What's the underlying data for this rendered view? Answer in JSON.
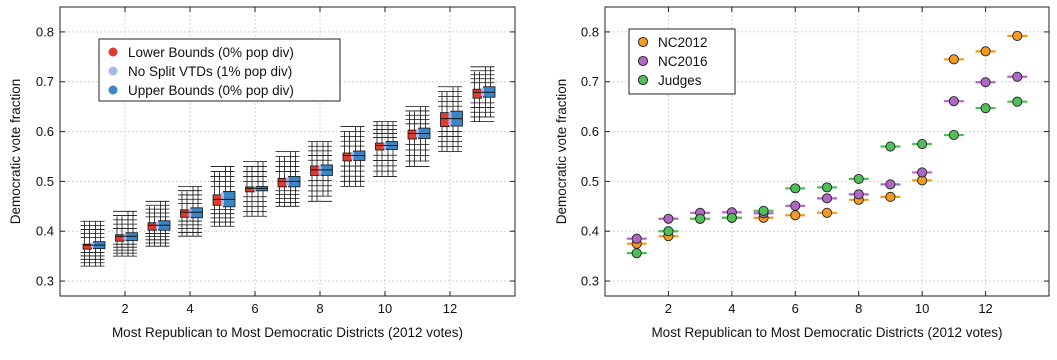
{
  "chart_data": [
    {
      "type": "box",
      "xlabel": "Most Republican to Most Democratic Districts (2012 votes)",
      "ylabel": "Democratic vote fraction",
      "xlim": [
        0,
        14
      ],
      "ylim": [
        0.27,
        0.85
      ],
      "xticks": [
        2,
        4,
        6,
        8,
        10,
        12
      ],
      "yticks": [
        0.3,
        0.4,
        0.5,
        0.6,
        0.7,
        0.8
      ],
      "x_tick_labels": [
        "2",
        "4",
        "6",
        "8",
        "10",
        "12"
      ],
      "y_tick_labels": [
        "0.3",
        "0.4",
        "0.5",
        "0.6",
        "0.7",
        "0.8"
      ],
      "grid": true,
      "legend_position": "top-left",
      "categories": [
        1,
        2,
        3,
        4,
        5,
        6,
        7,
        8,
        9,
        10,
        11,
        12,
        13
      ],
      "series": [
        {
          "name": "Lower Bounds (0% pop div)",
          "color": "#e03a2f",
          "median": [
            0.369,
            0.386,
            0.409,
            0.435,
            0.461,
            0.484,
            0.497,
            0.52,
            0.548,
            0.57,
            0.593,
            0.621,
            0.676
          ],
          "q1": [
            0.364,
            0.38,
            0.402,
            0.428,
            0.452,
            0.479,
            0.489,
            0.512,
            0.541,
            0.563,
            0.585,
            0.61,
            0.667
          ],
          "q3": [
            0.374,
            0.393,
            0.417,
            0.443,
            0.473,
            0.489,
            0.506,
            0.531,
            0.557,
            0.577,
            0.603,
            0.638,
            0.685
          ],
          "whisker_low": [
            0.33,
            0.35,
            0.37,
            0.39,
            0.41,
            0.43,
            0.45,
            0.46,
            0.49,
            0.51,
            0.53,
            0.56,
            0.62
          ],
          "whisker_high": [
            0.42,
            0.43,
            0.45,
            0.48,
            0.52,
            0.53,
            0.55,
            0.58,
            0.6,
            0.62,
            0.64,
            0.68,
            0.72
          ]
        },
        {
          "name": "No Split VTDs (1% pop div)",
          "color": "#a9b8e8",
          "median": [
            0.371,
            0.389,
            0.411,
            0.437,
            0.463,
            0.485,
            0.499,
            0.522,
            0.55,
            0.571,
            0.595,
            0.624,
            0.678
          ]
        },
        {
          "name": "Upper Bounds (0% pop div)",
          "color": "#3b86c6",
          "median": [
            0.372,
            0.39,
            0.412,
            0.438,
            0.464,
            0.486,
            0.5,
            0.523,
            0.552,
            0.572,
            0.596,
            0.626,
            0.679
          ],
          "q1": [
            0.365,
            0.381,
            0.402,
            0.427,
            0.449,
            0.481,
            0.489,
            0.512,
            0.542,
            0.564,
            0.586,
            0.611,
            0.669
          ],
          "q3": [
            0.379,
            0.397,
            0.421,
            0.447,
            0.48,
            0.49,
            0.51,
            0.533,
            0.561,
            0.58,
            0.607,
            0.641,
            0.69
          ],
          "whisker_low": [
            0.33,
            0.35,
            0.37,
            0.39,
            0.41,
            0.43,
            0.45,
            0.47,
            0.49,
            0.51,
            0.54,
            0.56,
            0.63
          ],
          "whisker_high": [
            0.42,
            0.44,
            0.46,
            0.49,
            0.53,
            0.54,
            0.56,
            0.58,
            0.61,
            0.62,
            0.65,
            0.69,
            0.73
          ]
        }
      ]
    },
    {
      "type": "scatter",
      "xlabel": "Most Republican to Most Democratic Districts (2012 votes)",
      "ylabel": "Democratic vote fraction",
      "xlim": [
        0,
        14
      ],
      "ylim": [
        0.27,
        0.85
      ],
      "xticks": [
        2,
        4,
        6,
        8,
        10,
        12
      ],
      "yticks": [
        0.3,
        0.4,
        0.5,
        0.6,
        0.7,
        0.8
      ],
      "x_tick_labels": [
        "2",
        "4",
        "6",
        "8",
        "10",
        "12"
      ],
      "y_tick_labels": [
        "0.3",
        "0.4",
        "0.5",
        "0.6",
        "0.7",
        "0.8"
      ],
      "grid": true,
      "legend_position": "top-left",
      "x": [
        1,
        2,
        3,
        4,
        5,
        6,
        7,
        8,
        9,
        10,
        11,
        12,
        13
      ],
      "series": [
        {
          "name": "NC2012",
          "color": "#f59a1f",
          "line_color": "#f59a1f",
          "values": [
            0.375,
            0.39,
            0.425,
            0.427,
            0.427,
            0.432,
            0.437,
            0.463,
            0.469,
            0.502,
            0.745,
            0.761,
            0.792
          ]
        },
        {
          "name": "NC2016",
          "color": "#b067c4",
          "line_color": "#b067c4",
          "values": [
            0.385,
            0.425,
            0.437,
            0.438,
            0.436,
            0.451,
            0.466,
            0.474,
            0.494,
            0.518,
            0.661,
            0.699,
            0.71
          ]
        },
        {
          "name": "Judges",
          "color": "#4fbf5a",
          "line_color": "#4fbf5a",
          "values": [
            0.356,
            0.4,
            0.425,
            0.427,
            0.441,
            0.486,
            0.488,
            0.505,
            0.57,
            0.575,
            0.593,
            0.647,
            0.66
          ]
        }
      ]
    }
  ]
}
